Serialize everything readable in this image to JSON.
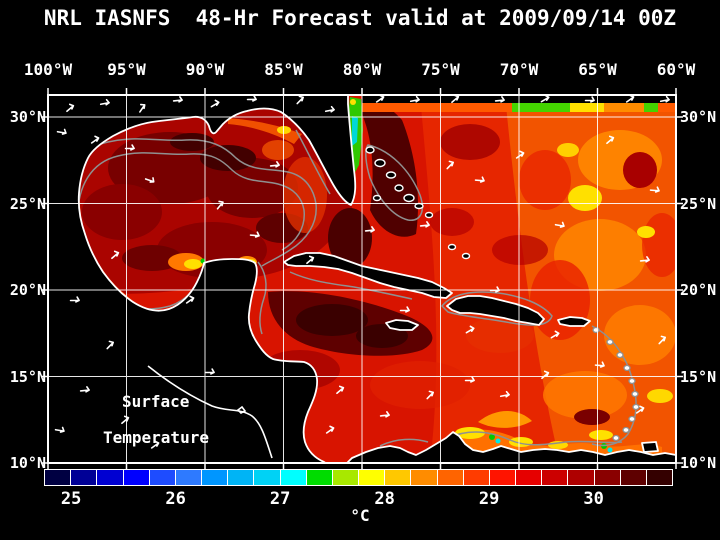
{
  "title": "NRL IASNFS  48-Hr Forecast valid at 2009/09/14 00Z",
  "axes": {
    "top_labels": [
      "100°W",
      "95°W",
      "90°W",
      "85°W",
      "80°W",
      "75°W",
      "70°W",
      "65°W",
      "60°W"
    ],
    "left_labels": [
      "30°N",
      "25°N",
      "20°N",
      "15°N",
      "10°N"
    ],
    "right_labels": [
      "30°N",
      "25°N",
      "20°N",
      "15°N",
      "10°N"
    ]
  },
  "overlay": {
    "field_label_line1": "Surface",
    "field_label_line2": "Temperature"
  },
  "colorbar": {
    "unit": "°C",
    "tick_labels": [
      "25",
      "26",
      "27",
      "28",
      "29",
      "30"
    ],
    "cell_colors": [
      "#000042",
      "#000096",
      "#0000D2",
      "#0000FF",
      "#1E4CFF",
      "#2E7AFF",
      "#0096FF",
      "#00B4F5",
      "#00D2F5",
      "#00FFFF",
      "#00DC00",
      "#A8E800",
      "#FFFF00",
      "#FFC800",
      "#FF8C00",
      "#FF6400",
      "#FF3C00",
      "#FF1400",
      "#E60000",
      "#CC0000",
      "#AE0000",
      "#8A0000",
      "#5E0000",
      "#340000"
    ]
  },
  "chart_data": {
    "type": "heatmap",
    "variable": "Sea Surface Temperature",
    "unit": "°C",
    "colorbar_ticks": [
      25,
      26,
      27,
      28,
      29,
      30
    ],
    "colorbar_cells": 24,
    "lon_range_deg_w": [
      100,
      60
    ],
    "lat_range_deg_n": [
      10,
      31
    ],
    "valid_time": "2009/09/14 00Z",
    "forecast_hours": 48,
    "model": "NRL IASNFS"
  }
}
